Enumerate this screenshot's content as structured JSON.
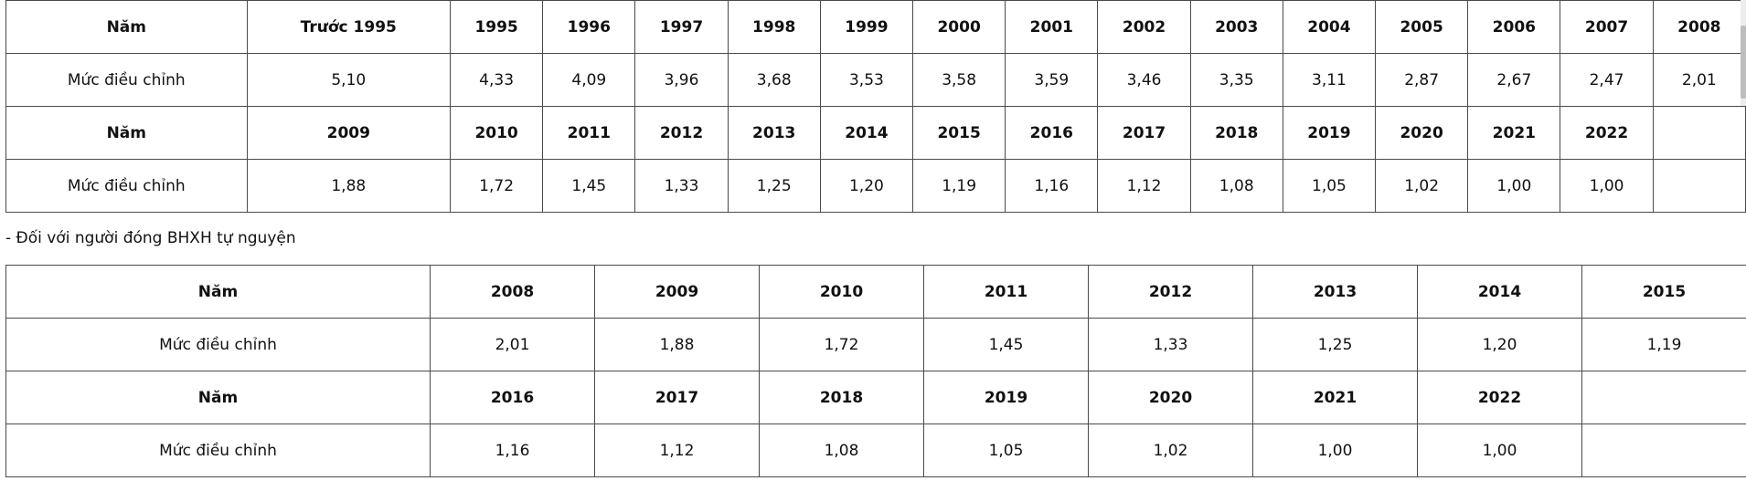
{
  "table1": {
    "rows": [
      [
        "Năm",
        "Trước 1995",
        "1995",
        "1996",
        "1997",
        "1998",
        "1999",
        "2000",
        "2001",
        "2002",
        "2003",
        "2004",
        "2005",
        "2006",
        "2007",
        "2008"
      ],
      [
        "Mức điều chỉnh",
        "5,10",
        "4,33",
        "4,09",
        "3,96",
        "3,68",
        "3,53",
        "3,58",
        "3,59",
        "3,46",
        "3,35",
        "3,11",
        "2,87",
        "2,67",
        "2,47",
        "2,01"
      ],
      [
        "Năm",
        "2009",
        "2010",
        "2011",
        "2012",
        "2013",
        "2014",
        "2015",
        "2016",
        "2017",
        "2018",
        "2019",
        "2020",
        "2021",
        "2022",
        ""
      ],
      [
        "Mức điều chỉnh",
        "1,88",
        "1,72",
        "1,45",
        "1,33",
        "1,25",
        "1,20",
        "1,19",
        "1,16",
        "1,12",
        "1,08",
        "1,05",
        "1,02",
        "1,00",
        "1,00",
        ""
      ]
    ]
  },
  "note": "- Đối với người đóng BHXH tự nguyện",
  "table2": {
    "rows": [
      [
        "Năm",
        "2008",
        "2009",
        "2010",
        "2011",
        "2012",
        "2013",
        "2014",
        "2015"
      ],
      [
        "Mức điều chỉnh",
        "2,01",
        "1,88",
        "1,72",
        "1,45",
        "1,33",
        "1,25",
        "1,20",
        "1,19"
      ],
      [
        "Năm",
        "2016",
        "2017",
        "2018",
        "2019",
        "2020",
        "2021",
        "2022",
        ""
      ],
      [
        "Mức điều chỉnh",
        "1,16",
        "1,12",
        "1,08",
        "1,05",
        "1,02",
        "1,00",
        "1,00",
        ""
      ]
    ]
  }
}
